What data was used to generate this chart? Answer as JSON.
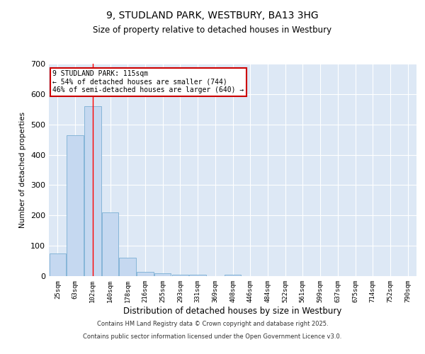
{
  "title_line1": "9, STUDLAND PARK, WESTBURY, BA13 3HG",
  "title_line2": "Size of property relative to detached houses in Westbury",
  "xlabel": "Distribution of detached houses by size in Westbury",
  "ylabel": "Number of detached properties",
  "categories": [
    "25sqm",
    "63sqm",
    "102sqm",
    "140sqm",
    "178sqm",
    "216sqm",
    "255sqm",
    "293sqm",
    "331sqm",
    "369sqm",
    "408sqm",
    "446sqm",
    "484sqm",
    "522sqm",
    "561sqm",
    "599sqm",
    "637sqm",
    "675sqm",
    "714sqm",
    "752sqm",
    "790sqm"
  ],
  "values": [
    75,
    465,
    560,
    210,
    60,
    15,
    10,
    5,
    5,
    0,
    5,
    0,
    0,
    0,
    0,
    0,
    0,
    0,
    0,
    0,
    0
  ],
  "bar_color": "#c5d8f0",
  "bar_edgecolor": "#7aafd4",
  "background_color": "#dde8f5",
  "ylim": [
    0,
    700
  ],
  "yticks": [
    0,
    100,
    200,
    300,
    400,
    500,
    600,
    700
  ],
  "grid_color": "#ffffff",
  "red_line_index": 2,
  "annotation_line1": "9 STUDLAND PARK: 115sqm",
  "annotation_line2": "← 54% of detached houses are smaller (744)",
  "annotation_line3": "46% of semi-detached houses are larger (640) →",
  "annotation_box_color": "#ffffff",
  "annotation_box_edgecolor": "#cc0000",
  "footer_line1": "Contains HM Land Registry data © Crown copyright and database right 2025.",
  "footer_line2": "Contains public sector information licensed under the Open Government Licence v3.0."
}
